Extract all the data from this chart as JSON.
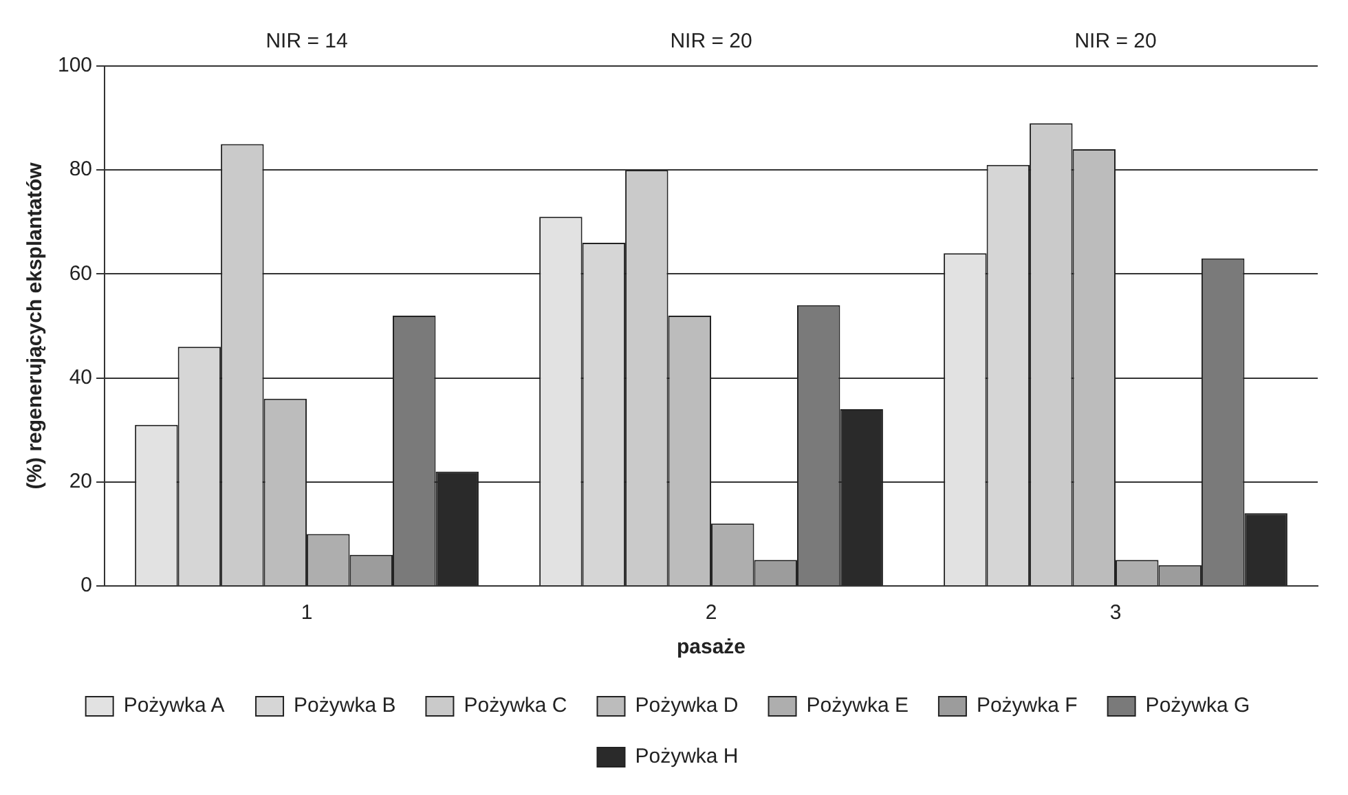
{
  "chart_data": {
    "type": "bar",
    "xlabel": "pasaże",
    "ylabel": "(%) regenerujących eksplantatów",
    "categories": [
      "1",
      "2",
      "3"
    ],
    "series": [
      {
        "name": "Pożywka A",
        "color": "#e2e2e2",
        "values": [
          31,
          71,
          64
        ]
      },
      {
        "name": "Pożywka B",
        "color": "#d6d6d6",
        "values": [
          46,
          66,
          81
        ]
      },
      {
        "name": "Pożywka C",
        "color": "#cacaca",
        "values": [
          85,
          80,
          89
        ]
      },
      {
        "name": "Pożywka D",
        "color": "#bcbcbc",
        "values": [
          36,
          52,
          84
        ]
      },
      {
        "name": "Pożywka E",
        "color": "#aeaeae",
        "values": [
          10,
          12,
          5
        ]
      },
      {
        "name": "Pożywka F",
        "color": "#9c9c9c",
        "values": [
          6,
          5,
          4
        ]
      },
      {
        "name": "Pożywka G",
        "color": "#7a7a7a",
        "values": [
          52,
          54,
          63
        ]
      },
      {
        "name": "Pożywka H",
        "color": "#2a2a2a",
        "values": [
          22,
          34,
          14
        ]
      }
    ],
    "ylim": [
      0,
      100
    ],
    "yticks": [
      0,
      20,
      40,
      60,
      80,
      100
    ],
    "grid": "y",
    "legend": "bottom",
    "annotations": [
      "NIR = 14",
      "NIR = 20",
      "NIR = 20"
    ]
  }
}
